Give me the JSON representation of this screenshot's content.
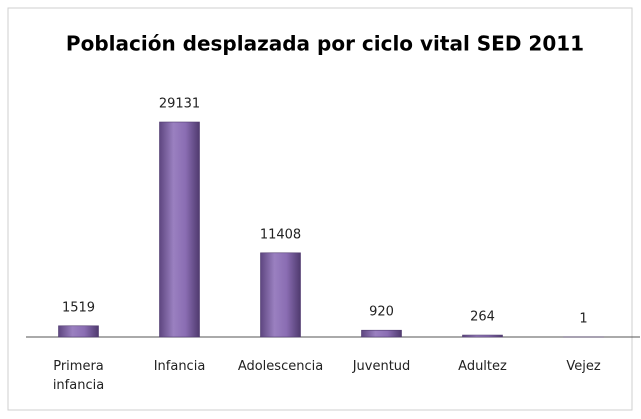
{
  "chart_data": {
    "type": "bar",
    "title": "Población desplazada por ciclo vital SED 2011",
    "categories": [
      "Primera infancia",
      "Infancia",
      "Adolescencia",
      "Juventud",
      "Adultez",
      "Vejez"
    ],
    "values": [
      1519,
      29131,
      11408,
      920,
      264,
      1
    ],
    "color": "#8064a2"
  }
}
